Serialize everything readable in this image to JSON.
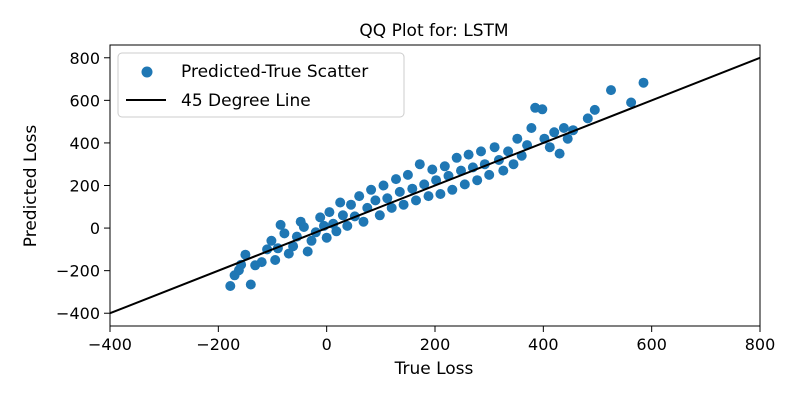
{
  "chart_data": {
    "type": "scatter",
    "title": "QQ Plot for: LSTM",
    "xlabel": "True Loss",
    "ylabel": "Predicted Loss",
    "xlim": [
      -400,
      800
    ],
    "ylim": [
      -460,
      860
    ],
    "xticks": [
      -400,
      -200,
      0,
      200,
      400,
      600,
      800
    ],
    "yticks": [
      -400,
      -200,
      0,
      200,
      400,
      600,
      800
    ],
    "xtick_labels": [
      "−400",
      "−200",
      "0",
      "200",
      "400",
      "600",
      "800"
    ],
    "ytick_labels": [
      "−400",
      "−200",
      "0",
      "200",
      "400",
      "600",
      "800"
    ],
    "grid": false,
    "legend": {
      "placement": "top-left",
      "entries": [
        "Predicted-True Scatter",
        "45 Degree Line"
      ]
    },
    "series": [
      {
        "name": "Predicted-True Scatter",
        "kind": "scatter",
        "color": "#1f77b4",
        "points": [
          [
            -178,
            -272
          ],
          [
            -170,
            -222
          ],
          [
            -162,
            -198
          ],
          [
            -158,
            -172
          ],
          [
            -150,
            -125
          ],
          [
            -140,
            -265
          ],
          [
            -132,
            -175
          ],
          [
            -120,
            -160
          ],
          [
            -110,
            -100
          ],
          [
            -102,
            -60
          ],
          [
            -95,
            -150
          ],
          [
            -90,
            -95
          ],
          [
            -85,
            15
          ],
          [
            -78,
            -25
          ],
          [
            -70,
            -120
          ],
          [
            -62,
            -85
          ],
          [
            -55,
            -40
          ],
          [
            -48,
            30
          ],
          [
            -42,
            5
          ],
          [
            -35,
            -110
          ],
          [
            -28,
            -60
          ],
          [
            -20,
            -20
          ],
          [
            -12,
            50
          ],
          [
            -5,
            10
          ],
          [
            0,
            -45
          ],
          [
            5,
            75
          ],
          [
            12,
            20
          ],
          [
            18,
            -15
          ],
          [
            25,
            120
          ],
          [
            30,
            60
          ],
          [
            38,
            10
          ],
          [
            45,
            110
          ],
          [
            52,
            55
          ],
          [
            60,
            150
          ],
          [
            68,
            30
          ],
          [
            75,
            95
          ],
          [
            82,
            180
          ],
          [
            90,
            130
          ],
          [
            98,
            60
          ],
          [
            105,
            200
          ],
          [
            112,
            140
          ],
          [
            120,
            95
          ],
          [
            128,
            230
          ],
          [
            135,
            170
          ],
          [
            142,
            110
          ],
          [
            150,
            250
          ],
          [
            158,
            185
          ],
          [
            165,
            130
          ],
          [
            172,
            300
          ],
          [
            180,
            205
          ],
          [
            188,
            150
          ],
          [
            195,
            275
          ],
          [
            202,
            225
          ],
          [
            210,
            160
          ],
          [
            218,
            290
          ],
          [
            225,
            245
          ],
          [
            232,
            180
          ],
          [
            240,
            330
          ],
          [
            248,
            270
          ],
          [
            255,
            205
          ],
          [
            262,
            345
          ],
          [
            270,
            285
          ],
          [
            278,
            225
          ],
          [
            285,
            360
          ],
          [
            292,
            300
          ],
          [
            300,
            250
          ],
          [
            310,
            380
          ],
          [
            318,
            320
          ],
          [
            326,
            270
          ],
          [
            335,
            360
          ],
          [
            345,
            300
          ],
          [
            352,
            420
          ],
          [
            360,
            340
          ],
          [
            370,
            390
          ],
          [
            378,
            470
          ],
          [
            385,
            565
          ],
          [
            398,
            558
          ],
          [
            402,
            420
          ],
          [
            412,
            380
          ],
          [
            420,
            450
          ],
          [
            430,
            350
          ],
          [
            438,
            470
          ],
          [
            445,
            420
          ],
          [
            455,
            460
          ],
          [
            482,
            515
          ],
          [
            495,
            555
          ],
          [
            525,
            648
          ],
          [
            562,
            590
          ],
          [
            585,
            683
          ]
        ]
      },
      {
        "name": "45 Degree Line",
        "kind": "line",
        "color": "#000000",
        "x": [
          -400,
          800
        ],
        "y": [
          -400,
          800
        ]
      }
    ]
  }
}
